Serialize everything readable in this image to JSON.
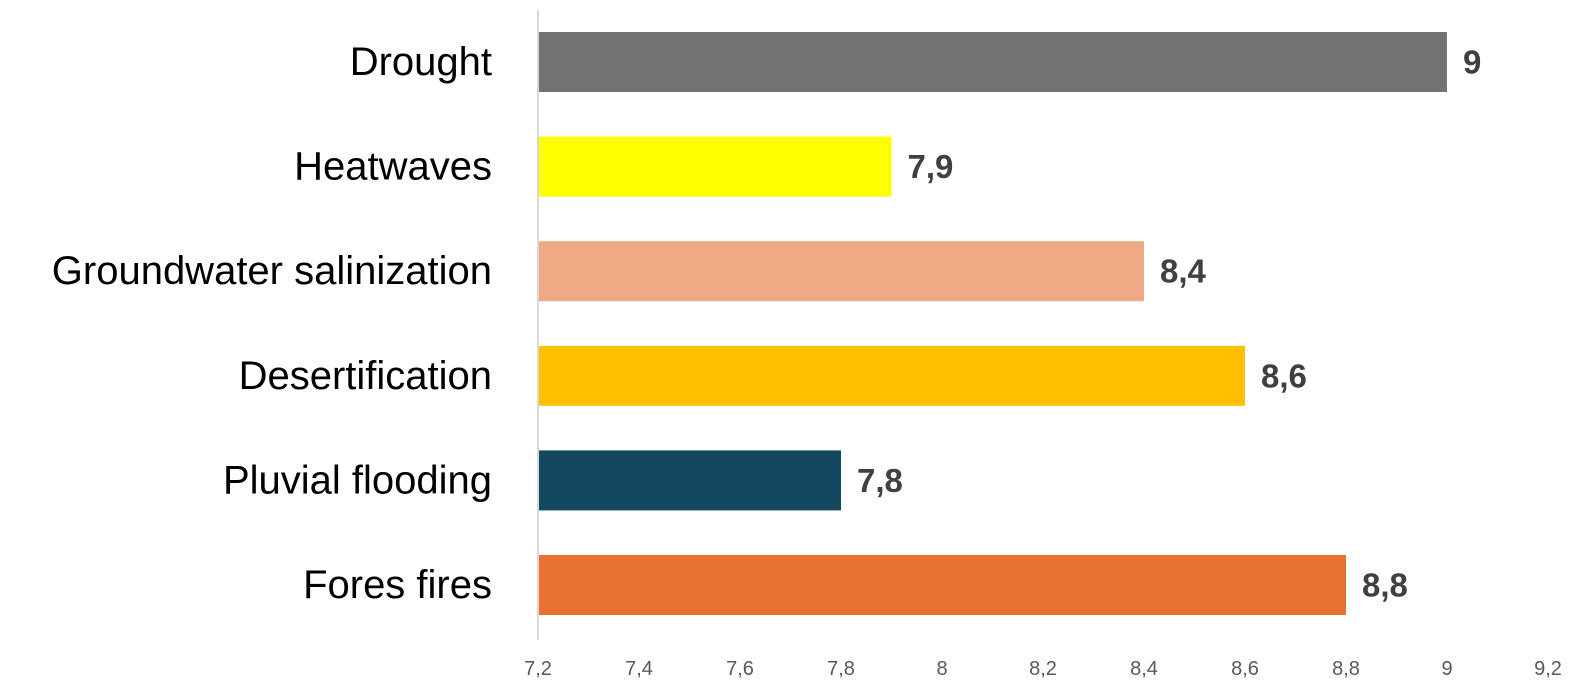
{
  "chart_data": {
    "type": "bar",
    "orientation": "horizontal",
    "categories": [
      "Drought",
      "Heatwaves",
      "Groundwater salinization",
      "Desertification",
      "Pluvial flooding",
      "Fores fires"
    ],
    "values": [
      9,
      7.9,
      8.4,
      8.6,
      7.8,
      8.8
    ],
    "value_labels": [
      "9",
      "7,9",
      "8,4",
      "8,6",
      "7,8",
      "8,8"
    ],
    "colors": [
      "#727272",
      "#ffff00",
      "#f0a985",
      "#ffc000",
      "#134861",
      "#e97132"
    ],
    "xlim": [
      7.2,
      9.2
    ],
    "xticks": [
      7.2,
      7.4,
      7.6,
      7.8,
      8,
      8.2,
      8.4,
      8.6,
      8.8,
      9,
      9.2
    ],
    "xtick_labels": [
      "7,2",
      "7,4",
      "7,6",
      "7,8",
      "8",
      "8,2",
      "8,4",
      "8,6",
      "8,8",
      "9",
      "9,2"
    ],
    "title": "",
    "xlabel": "",
    "ylabel": "",
    "grid": false,
    "legend": "none"
  }
}
